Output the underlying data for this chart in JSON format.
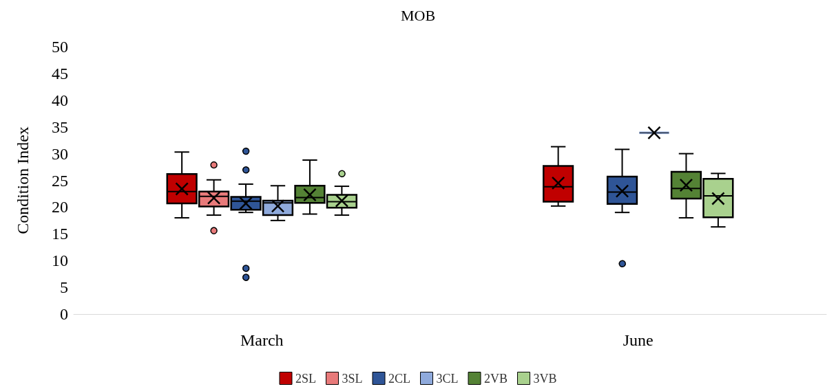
{
  "chart_data": {
    "type": "box",
    "title": "MOB",
    "ylabel": "Condition Index",
    "categories": [
      "March",
      "June"
    ],
    "ylim": [
      0,
      50
    ],
    "yticks": [
      0,
      5,
      10,
      15,
      20,
      25,
      30,
      35,
      40,
      45,
      50
    ],
    "grid": false,
    "legend": "bottom",
    "series": [
      {
        "name": "2SL",
        "color": "#c00000",
        "boxes": [
          {
            "low": 18.0,
            "q1": 20.7,
            "median": 22.9,
            "q3": 26.2,
            "high": 30.3,
            "mean": 23.4
          },
          {
            "low": 20.2,
            "q1": 21.0,
            "median": 23.8,
            "q3": 27.7,
            "high": 31.3,
            "mean": 24.5
          }
        ]
      },
      {
        "name": "3SL",
        "color": "#e87a7a",
        "boxes": [
          {
            "low": 18.5,
            "q1": 20.1,
            "median": 22.0,
            "q3": 22.9,
            "high": 25.1,
            "mean": 21.7,
            "outliers": [
              27.9,
              15.6
            ]
          },
          null
        ]
      },
      {
        "name": "2CL",
        "color": "#2f5597",
        "boxes": [
          {
            "low": 19.0,
            "q1": 19.5,
            "median": 21.1,
            "q3": 21.9,
            "high": 24.3,
            "mean": 20.7,
            "outliers": [
              30.6,
              27.1,
              8.7,
              7.0
            ]
          },
          {
            "low": 19.0,
            "q1": 20.6,
            "median": 22.8,
            "q3": 25.7,
            "high": 30.8,
            "mean": 23.0,
            "outliers": [
              9.6
            ]
          }
        ]
      },
      {
        "name": "3CL",
        "color": "#8faadc",
        "boxes": [
          {
            "low": 17.5,
            "q1": 18.5,
            "median": 20.8,
            "q3": 21.2,
            "high": 24.0,
            "mean": 20.2
          },
          {
            "low": 33.9,
            "q1": 33.9,
            "median": 33.9,
            "q3": 33.9,
            "high": 33.9,
            "mean": 33.9
          }
        ]
      },
      {
        "name": "2VB",
        "color": "#548235",
        "boxes": [
          {
            "low": 18.7,
            "q1": 20.8,
            "median": 21.8,
            "q3": 24.0,
            "high": 28.8,
            "mean": 22.3
          },
          {
            "low": 18.0,
            "q1": 21.6,
            "median": 23.5,
            "q3": 26.6,
            "high": 30.0,
            "mean": 24.1
          }
        ]
      },
      {
        "name": "3VB",
        "color": "#a9d18e",
        "boxes": [
          {
            "low": 18.5,
            "q1": 19.9,
            "median": 21.0,
            "q3": 22.3,
            "high": 23.9,
            "mean": 21.2,
            "outliers": [
              26.4
            ]
          },
          {
            "low": 16.3,
            "q1": 18.1,
            "median": 22.1,
            "q3": 25.3,
            "high": 26.3,
            "mean": 21.6
          }
        ]
      }
    ]
  }
}
